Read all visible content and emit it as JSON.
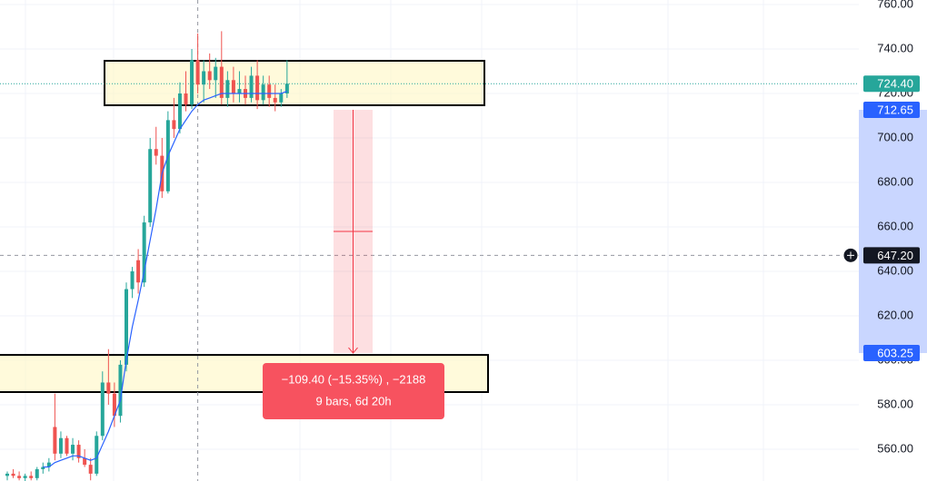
{
  "chart_data": {
    "type": "candlestick",
    "ylim": [
      545.7,
      762.04
    ],
    "yticks": [
      {
        "value": 560,
        "label": "560.00"
      },
      {
        "value": 580,
        "label": "580.00"
      },
      {
        "value": 600,
        "label": "600.00"
      },
      {
        "value": 620,
        "label": "620.00"
      },
      {
        "value": 640,
        "label": "640.00"
      },
      {
        "value": 660,
        "label": "660.00"
      },
      {
        "value": 680,
        "label": "680.00"
      },
      {
        "value": 700,
        "label": "700.00"
      },
      {
        "value": 720,
        "label": "720.00"
      },
      {
        "value": 740,
        "label": "740.00"
      },
      {
        "value": 760,
        "label": "760.00"
      }
    ],
    "grid": true,
    "up_color": "#26a69a",
    "down_color": "#ef5350",
    "open": [
      548,
      549,
      548,
      547,
      548,
      547,
      551,
      552,
      570,
      558,
      565,
      558,
      562,
      556,
      553,
      549,
      566,
      590,
      585,
      575,
      598,
      632,
      645,
      635,
      662,
      695,
      692,
      676,
      708,
      704,
      720,
      715,
      735,
      724,
      730,
      726,
      732,
      718,
      726,
      720,
      722,
      718,
      728,
      717,
      724,
      718,
      716,
      720
    ],
    "high": [
      550,
      551,
      550,
      549,
      550,
      552,
      554,
      556,
      585,
      568,
      566,
      565,
      564,
      560,
      556,
      568,
      595,
      605,
      590,
      600,
      635,
      642,
      650,
      665,
      700,
      705,
      700,
      712,
      718,
      725,
      730,
      740,
      747,
      735,
      738,
      736,
      748,
      730,
      732,
      730,
      728,
      732,
      735,
      728,
      728,
      724,
      722,
      735
    ],
    "low": [
      546,
      547,
      546,
      545,
      546,
      546,
      549,
      550,
      555,
      556,
      557,
      555,
      554,
      552,
      546,
      548,
      564,
      580,
      570,
      572,
      595,
      628,
      630,
      633,
      660,
      688,
      673,
      675,
      700,
      702,
      712,
      713,
      720,
      716,
      722,
      718,
      715,
      714,
      716,
      716,
      715,
      716,
      713,
      715,
      714,
      712,
      714,
      718
    ],
    "close": [
      549,
      548,
      547,
      548,
      547,
      551,
      552,
      554,
      558,
      565,
      558,
      562,
      556,
      553,
      549,
      566,
      590,
      585,
      575,
      598,
      632,
      640,
      635,
      662,
      695,
      692,
      676,
      708,
      704,
      720,
      715,
      735,
      724,
      730,
      726,
      732,
      718,
      726,
      720,
      722,
      718,
      728,
      717,
      724,
      718,
      716,
      720,
      724.4
    ],
    "ma": {
      "color": "#2962ff",
      "values": [
        null,
        null,
        null,
        null,
        null,
        null,
        552,
        552,
        554,
        555,
        556,
        557,
        557,
        556,
        555,
        556,
        562,
        568,
        575,
        582,
        600,
        615,
        627,
        640,
        654,
        668,
        684,
        692,
        698,
        704,
        708,
        712,
        715,
        717,
        718,
        719,
        720,
        720,
        720,
        720,
        720,
        720,
        720,
        720,
        720,
        720,
        720,
        721
      ]
    },
    "zones": [
      {
        "top": 734.7,
        "bottom": 714.7
      },
      {
        "top": 602.4,
        "bottom": 585.7
      }
    ],
    "last_price": 724.4,
    "crosshair": {
      "index": 32,
      "value": 647.2
    },
    "price_labels": [
      {
        "value": 724.4,
        "label": "724.40",
        "color": "#26a69a"
      },
      {
        "value": 712.65,
        "label": "712.65",
        "color": "#2962ff"
      },
      {
        "value": 603.25,
        "label": "603.25",
        "color": "#2962ff"
      },
      {
        "value": 647.2,
        "label": "647.20",
        "color": "#131722"
      }
    ],
    "measure": {
      "from": 712.65,
      "to": 603.25,
      "text": [
        "−109.40 (−15.35%) , −2188",
        "9 bars, 6d 20h"
      ]
    }
  }
}
